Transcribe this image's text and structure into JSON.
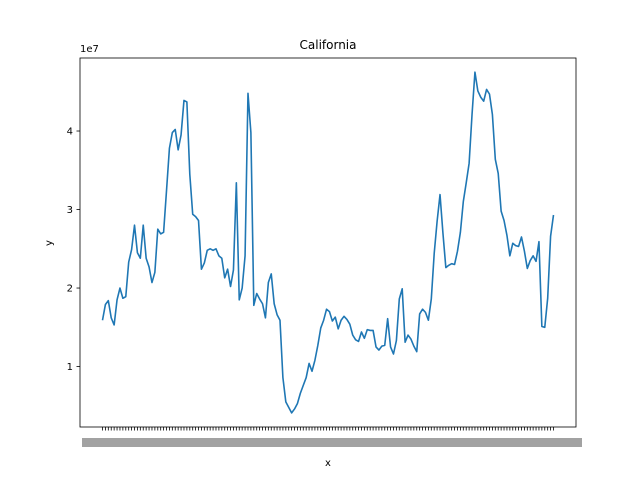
{
  "chart_data": {
    "type": "line",
    "title": "California",
    "xlabel": "x",
    "ylabel": "y",
    "y_offset_text": "1e7",
    "y_tick_values": [
      10000000,
      20000000,
      30000000,
      40000000
    ],
    "y_tick_labels": [
      "1",
      "2",
      "3",
      "4"
    ],
    "ylim": [
      2300000,
      49300000
    ],
    "grid": false,
    "line_color": "#1f77b4",
    "x_tick_labels_note": "x tick labels are densely overlapping and unreadable",
    "series": [
      {
        "values": [
          15900000,
          17900000,
          18400000,
          16200000,
          15300000,
          18500000,
          20000000,
          18700000,
          18900000,
          23300000,
          24900000,
          28000000,
          24500000,
          23800000,
          28000000,
          23800000,
          22700000,
          20700000,
          22000000,
          27500000,
          26900000,
          27100000,
          32400000,
          37800000,
          39800000,
          40200000,
          37600000,
          39500000,
          43900000,
          43700000,
          34500000,
          29400000,
          29100000,
          28600000,
          22400000,
          23200000,
          24800000,
          25000000,
          24800000,
          25000000,
          24100000,
          23800000,
          21300000,
          22400000,
          20200000,
          22300000,
          33400000,
          18500000,
          20000000,
          24100000,
          44800000,
          39800000,
          17800000,
          19300000,
          18600000,
          18000000,
          16200000,
          20700000,
          21800000,
          18000000,
          16600000,
          15900000,
          8600000,
          5500000,
          4800000,
          4100000,
          4600000,
          5300000,
          6600000,
          7600000,
          8600000,
          10400000,
          9400000,
          10800000,
          12700000,
          14900000,
          15900000,
          17300000,
          17000000,
          15800000,
          16300000,
          14800000,
          15900000,
          16400000,
          16000000,
          15400000,
          14000000,
          13400000,
          13200000,
          14400000,
          13600000,
          14700000,
          14600000,
          14600000,
          12500000,
          12100000,
          12600000,
          12700000,
          16100000,
          12500000,
          11600000,
          13300000,
          18600000,
          19900000,
          13100000,
          14000000,
          13500000,
          12600000,
          11900000,
          16700000,
          17300000,
          16900000,
          15900000,
          18600000,
          24400000,
          28500000,
          31900000,
          27000000,
          22600000,
          22900000,
          23100000,
          23000000,
          24700000,
          27100000,
          31000000,
          33400000,
          35900000,
          42100000,
          47500000,
          45100000,
          44300000,
          43800000,
          45300000,
          44700000,
          42100000,
          36400000,
          34600000,
          29800000,
          28600000,
          26700000,
          24100000,
          25700000,
          25400000,
          25300000,
          26500000,
          24700000,
          22500000,
          23500000,
          24100000,
          23400000,
          25900000,
          15100000,
          15000000,
          18700000,
          26600000,
          29300000
        ]
      }
    ]
  }
}
